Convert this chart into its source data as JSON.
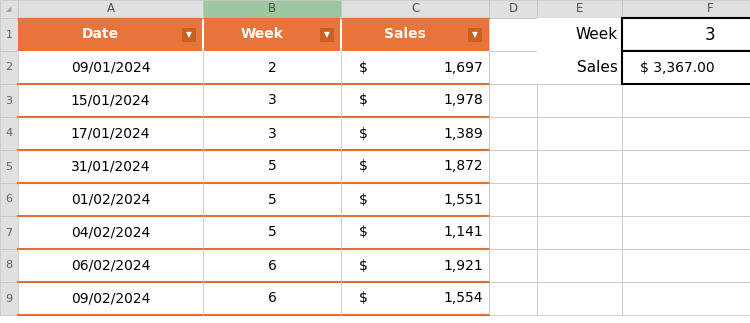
{
  "col_headers": [
    "Date",
    "Week",
    "Sales"
  ],
  "rows": [
    [
      "09/01/2024",
      "2",
      "1,697"
    ],
    [
      "15/01/2024",
      "3",
      "1,978"
    ],
    [
      "17/01/2024",
      "3",
      "1,389"
    ],
    [
      "31/01/2024",
      "5",
      "1,872"
    ],
    [
      "01/02/2024",
      "5",
      "1,551"
    ],
    [
      "04/02/2024",
      "5",
      "1,141"
    ],
    [
      "06/02/2024",
      "6",
      "1,921"
    ],
    [
      "09/02/2024",
      "6",
      "1,554"
    ]
  ],
  "summary_week": "3",
  "summary_sales": "$ 3,367.00",
  "header_bg": "#E8743B",
  "header_text": "#FFFFFF",
  "col_b_header_bg": "#9DC89D",
  "row_border_color": "#E07030",
  "cell_bg": "#FFFFFF",
  "summary_border": "#000000",
  "col_letter_bg": "#E0E0E0",
  "col_letter_b_bg": "#9DC89D",
  "grid_line_color": "#C0C0C0",
  "data_text_color": "#000000",
  "row_num_color": "#606060",
  "col_letters": [
    "A",
    "B",
    "C",
    "D",
    "E",
    "F"
  ],
  "fig_bg": "#FFFFFF",
  "font_size": 10,
  "header_font_size": 10,
  "letter_font_size": 8.5,
  "row_num_font_size": 8
}
